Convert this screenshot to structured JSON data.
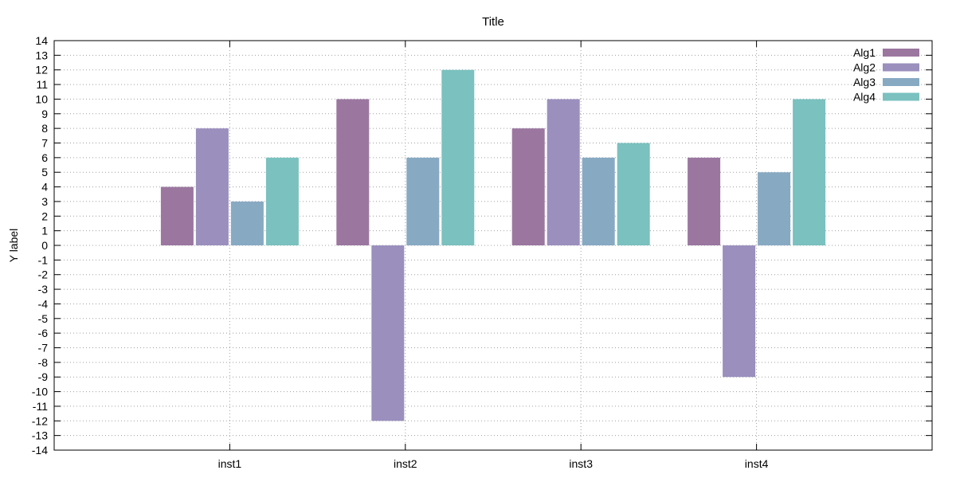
{
  "chart_data": {
    "type": "bar",
    "title": "Title",
    "xlabel": "",
    "ylabel": "Y label",
    "categories": [
      "inst1",
      "inst2",
      "inst3",
      "inst4"
    ],
    "series": [
      {
        "name": "Alg1",
        "values": [
          4,
          10,
          8,
          6
        ],
        "color": "#9b77a0"
      },
      {
        "name": "Alg2",
        "values": [
          8,
          -12,
          10,
          -9
        ],
        "color": "#9a8fbd"
      },
      {
        "name": "Alg3",
        "values": [
          3,
          6,
          6,
          5
        ],
        "color": "#88a9c2"
      },
      {
        "name": "Alg4",
        "values": [
          6,
          12,
          7,
          10
        ],
        "color": "#7ac1bf"
      }
    ],
    "ylim": [
      -14,
      14
    ],
    "ytick_step": 1,
    "grid": true,
    "legend_position": "top-right"
  }
}
